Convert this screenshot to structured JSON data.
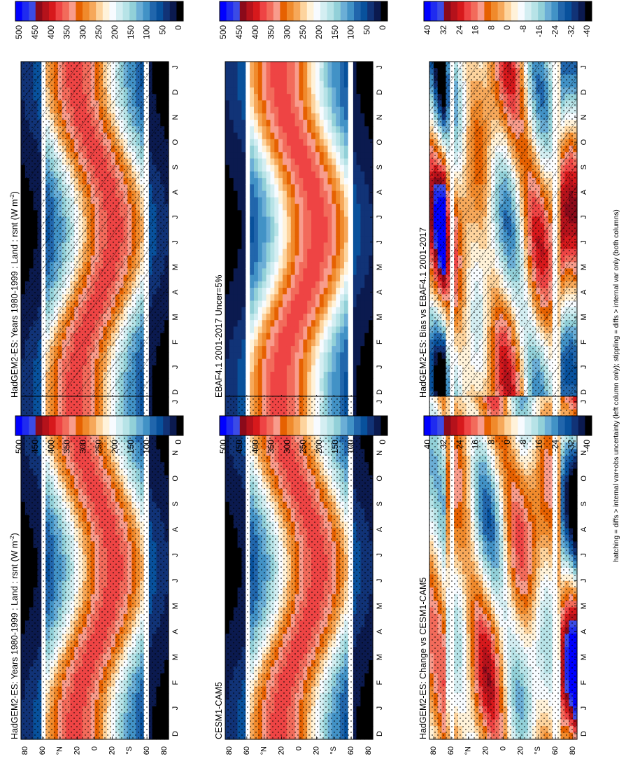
{
  "figure": {
    "footnote": "hatching = diffs > internal var+obs uncertainty (left column only); stippling = diffs > internal var only (both columns)"
  },
  "colorbars": {
    "absolute": {
      "labels": [
        "500",
        "450",
        "400",
        "350",
        "300",
        "250",
        "200",
        "150",
        "100",
        "50",
        "0"
      ],
      "colors": [
        "#0000ff",
        "#1f2bf0",
        "#3b4be6",
        "#8b0a1a",
        "#b5121b",
        "#d7191c",
        "#ee4444",
        "#f26b5b",
        "#f89c8c",
        "#e66101",
        "#f08a2c",
        "#f6a85a",
        "#fdd49e",
        "#fff2d9",
        "#f7fbff",
        "#d4eef2",
        "#b7e3e7",
        "#92d0d8",
        "#6baed6",
        "#4292c6",
        "#2166ac",
        "#08519c",
        "#113377",
        "#0b1a4f",
        "#000000"
      ]
    },
    "difference": {
      "labels": [
        "40",
        "32",
        "24",
        "16",
        "8",
        "0",
        "-8",
        "-16",
        "-24",
        "-32",
        "-40"
      ],
      "colors": [
        "#0000ff",
        "#1f2bf0",
        "#3b4be6",
        "#8b0a1a",
        "#b5121b",
        "#d7191c",
        "#ee4444",
        "#f26b5b",
        "#f89c8c",
        "#e66101",
        "#f08a2c",
        "#f6a85a",
        "#fdd49e",
        "#fff2d9",
        "#f7fbff",
        "#d4eef2",
        "#b7e3e7",
        "#92d0d8",
        "#6baed6",
        "#4292c6",
        "#2166ac",
        "#08519c",
        "#113377",
        "#0b1a4f",
        "#000000"
      ]
    }
  },
  "panels": [
    {
      "id": "left-top",
      "title": "HadGEM2-ES: Years 1980-1999 : Land : rsnt (W m",
      "title_sup": "-2",
      "title_end": ")",
      "colorbar": "absolute",
      "hatching": true,
      "stippling": true
    },
    {
      "id": "left-mid",
      "title": "EBAF4.1 2001-2017 Uncer=5%",
      "title_sup": "",
      "title_end": "",
      "colorbar": "absolute",
      "hatching": false,
      "stippling": false
    },
    {
      "id": "left-bot",
      "title": "HadGEM2-ES: Bias vs EBAF4.1 2001-2017",
      "title_sup": "",
      "title_end": "",
      "colorbar": "difference",
      "hatching": true,
      "stippling": true
    },
    {
      "id": "right-top",
      "title": "HadGEM2-ES: Years 1980-1999 : Land : rsnt (W m",
      "title_sup": "-2",
      "title_end": ")",
      "colorbar": "absolute",
      "hatching": false,
      "stippling": true
    },
    {
      "id": "right-mid",
      "title": "CESM1-CAM5",
      "title_sup": "",
      "title_end": "",
      "colorbar": "absolute",
      "hatching": false,
      "stippling": true
    },
    {
      "id": "right-bot",
      "title": "HadGEM2-ES: Change vs CESM1-CAM5",
      "title_sup": "",
      "title_end": "",
      "colorbar": "difference",
      "hatching": false,
      "stippling": true
    }
  ],
  "chart_data": {
    "type": "heatmap",
    "months": [
      "D",
      "J",
      "F",
      "M",
      "A",
      "M",
      "J",
      "J",
      "A",
      "S",
      "O",
      "N",
      "D",
      "J"
    ],
    "latitude_ticks": [
      "80",
      "60",
      "°N",
      "20",
      "0",
      "20",
      "°S",
      "60",
      "80"
    ],
    "variable": "rsnt (W m-2)",
    "absolute_scale": {
      "min": 0,
      "max": 500
    },
    "difference_scale": {
      "min": -40,
      "max": 40
    }
  }
}
